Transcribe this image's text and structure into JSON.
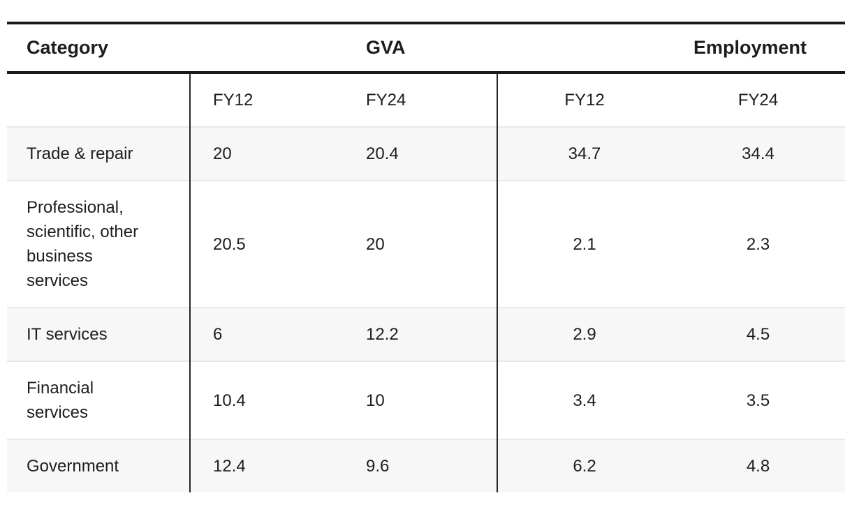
{
  "table": {
    "category_header": "Category",
    "group_headers": [
      "GVA",
      "Employment"
    ],
    "sub_headers": [
      "FY12",
      "FY24",
      "FY12",
      "FY24"
    ],
    "rows": [
      {
        "category": "Trade & repair",
        "values": [
          "20",
          "20.4",
          "34.7",
          "34.4"
        ]
      },
      {
        "category": "Professional, scientific, other business services",
        "values": [
          "20.5",
          "20",
          "2.1",
          "2.3"
        ]
      },
      {
        "category": "IT services",
        "values": [
          "6",
          "12.2",
          "2.9",
          "4.5"
        ]
      },
      {
        "category": "Financial services",
        "values": [
          "10.4",
          "10",
          "3.4",
          "3.5"
        ]
      },
      {
        "category": "Government",
        "values": [
          "12.4",
          "9.6",
          "6.2",
          "4.8"
        ]
      }
    ]
  },
  "colors": {
    "heavy_border": "#1a1a1a",
    "vertical_divider": "#262626",
    "row_separator": "#e9e9e9",
    "row_stripe": "#f7f7f7",
    "text": "#1d1d1d",
    "page_bg": "#ffffff"
  },
  "chart_data": {
    "type": "table",
    "title": "",
    "categories": [
      "Trade & repair",
      "Professional, scientific, other business services",
      "IT services",
      "Financial services",
      "Government"
    ],
    "series": [
      {
        "name": "GVA FY12",
        "values": [
          20,
          20.5,
          6,
          10.4,
          12.4
        ]
      },
      {
        "name": "GVA FY24",
        "values": [
          20.4,
          20,
          12.2,
          10,
          9.6
        ]
      },
      {
        "name": "Employment FY12",
        "values": [
          34.7,
          2.1,
          2.9,
          3.4,
          6.2
        ]
      },
      {
        "name": "Employment FY24",
        "values": [
          34.4,
          2.3,
          4.5,
          3.5,
          4.8
        ]
      }
    ],
    "layout": {
      "grouped_columns": [
        "GVA",
        "Employment"
      ],
      "sub_columns": [
        "FY12",
        "FY24"
      ],
      "zebra_striping": true
    }
  }
}
